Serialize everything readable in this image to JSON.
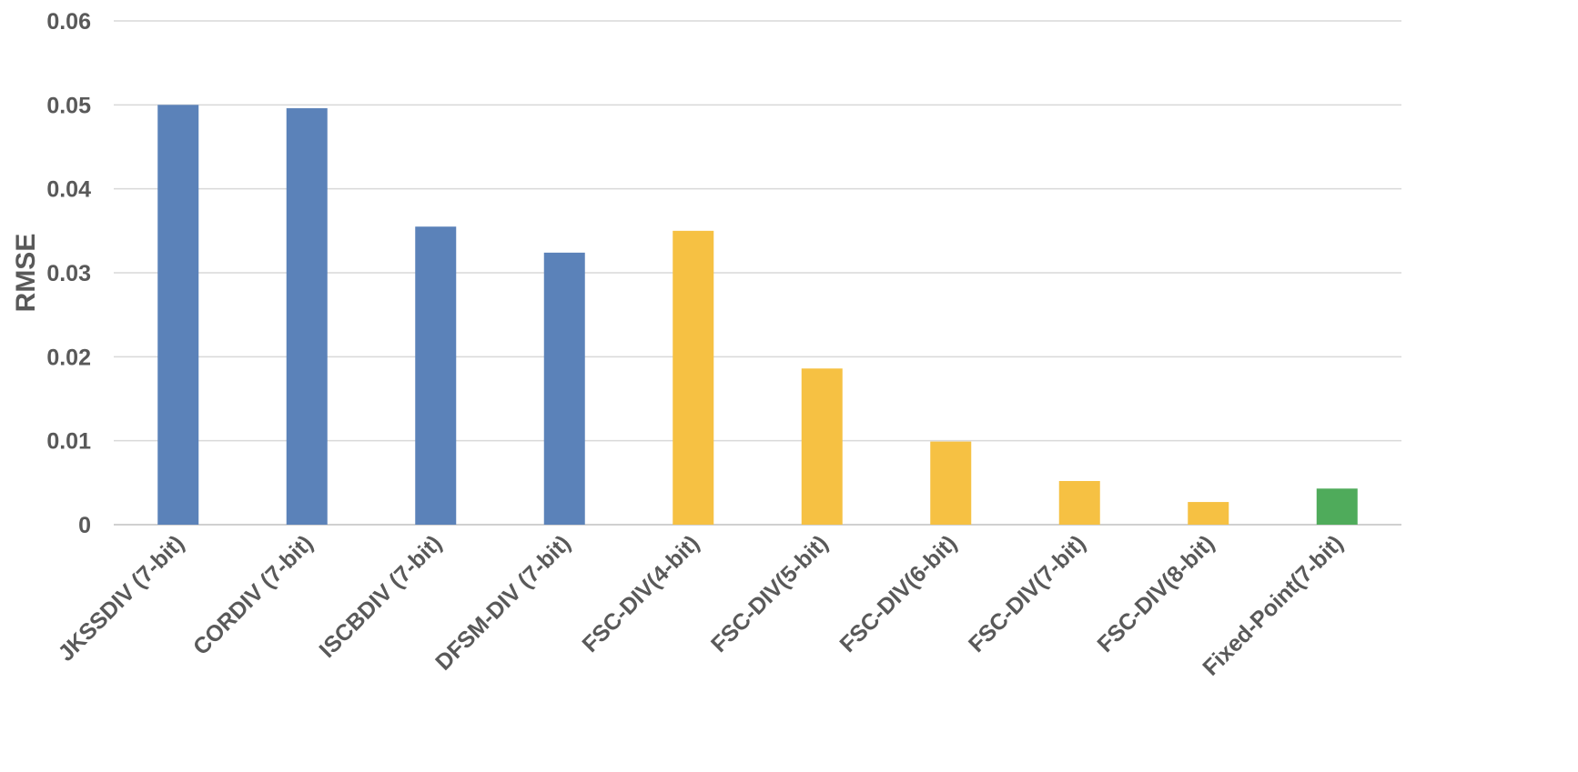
{
  "chart_data": {
    "type": "bar",
    "title": "",
    "xlabel": "",
    "ylabel": "RMSE",
    "ylim": [
      0,
      0.06
    ],
    "yticks": [
      "0",
      "0.01",
      "0.02",
      "0.03",
      "0.04",
      "0.05",
      "0.06"
    ],
    "grid": true,
    "legend": "none",
    "categories": [
      "JKSSDIV (7-bit)",
      "CORDIV (7-bit)",
      "ISCBDIV (7-bit)",
      "DFSM-DIV (7-bit)",
      "FSC-DIV(4-bit)",
      "FSC-DIV(5-bit)",
      "FSC-DIV(6-bit)",
      "FSC-DIV(7-bit)",
      "FSC-DIV(8-bit)",
      "Fixed-Point(7-bit)"
    ],
    "values": [
      0.05,
      0.0496,
      0.0355,
      0.0324,
      0.035,
      0.0186,
      0.0099,
      0.0052,
      0.0027,
      0.0043
    ],
    "colors": [
      "#5b82b9",
      "#5b82b9",
      "#5b82b9",
      "#5b82b9",
      "#f6c143",
      "#f6c143",
      "#f6c143",
      "#f6c143",
      "#f6c143",
      "#4fab5b"
    ]
  }
}
